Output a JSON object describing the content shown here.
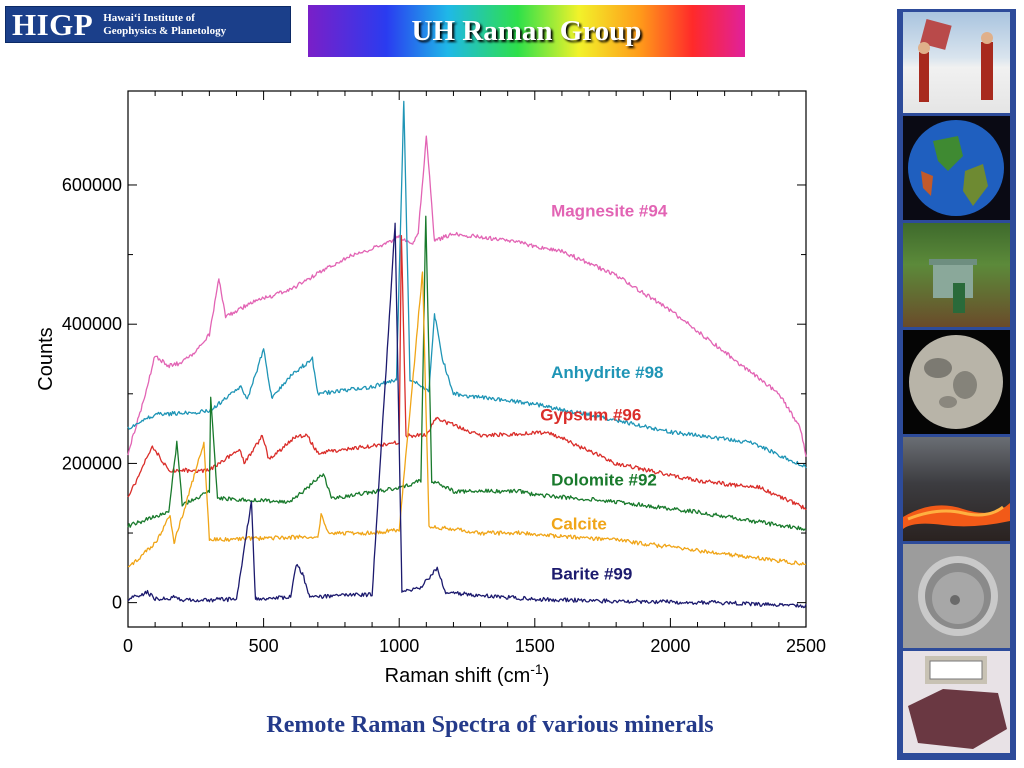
{
  "header": {
    "logo_abbr": "HIGP",
    "logo_full": "Hawaiʻi Institute of\nGeophysics & Planetology",
    "banner_title": "UH Raman Group"
  },
  "caption": "Remote Raman Spectra of various minerals",
  "side_photos": [
    "field-work-photo",
    "globe-photo",
    "forest-instrument-photo",
    "moon-photo",
    "lava-photo",
    "crater-photo",
    "mineral-sample-photo"
  ],
  "chart_data": {
    "type": "line",
    "xlabel": "Raman shift (cm",
    "xlabel_sup": "-1",
    "xlabel_end": ")",
    "ylabel": "Counts",
    "xlim": [
      0,
      2500
    ],
    "ylim": [
      -35000,
      735000
    ],
    "xticks": [
      0,
      500,
      1000,
      1500,
      2000,
      2500
    ],
    "yticks": [
      0,
      200000,
      400000,
      600000
    ],
    "grid": false,
    "series": [
      {
        "name": "Magnesite #94",
        "color": "#e264b4",
        "label_x": 1560,
        "label_y": 555000,
        "points": [
          [
            0,
            215000
          ],
          [
            50,
            280000
          ],
          [
            100,
            355000
          ],
          [
            150,
            340000
          ],
          [
            200,
            345000
          ],
          [
            250,
            360000
          ],
          [
            300,
            385000
          ],
          [
            335,
            465000
          ],
          [
            360,
            410000
          ],
          [
            450,
            430000
          ],
          [
            600,
            450000
          ],
          [
            800,
            495000
          ],
          [
            950,
            515000
          ],
          [
            1000,
            525000
          ],
          [
            1050,
            515000
          ],
          [
            1070,
            530000
          ],
          [
            1100,
            670000
          ],
          [
            1130,
            520000
          ],
          [
            1200,
            530000
          ],
          [
            1400,
            520000
          ],
          [
            1600,
            505000
          ],
          [
            1800,
            470000
          ],
          [
            2000,
            420000
          ],
          [
            2200,
            360000
          ],
          [
            2400,
            300000
          ],
          [
            2480,
            250000
          ],
          [
            2500,
            210000
          ]
        ],
        "peaks": [
          [
            335,
            0.9
          ],
          [
            1100,
            0.9
          ]
        ]
      },
      {
        "name": "Anhydrite #98",
        "color": "#1f95b6",
        "label_x": 1560,
        "label_y": 323000,
        "points": [
          [
            0,
            250000
          ],
          [
            100,
            270000
          ],
          [
            300,
            275000
          ],
          [
            415,
            310000
          ],
          [
            440,
            290000
          ],
          [
            500,
            365000
          ],
          [
            530,
            295000
          ],
          [
            610,
            330000
          ],
          [
            680,
            350000
          ],
          [
            700,
            300000
          ],
          [
            900,
            310000
          ],
          [
            990,
            320000
          ],
          [
            1017,
            720000
          ],
          [
            1040,
            320000
          ],
          [
            1110,
            305000
          ],
          [
            1130,
            415000
          ],
          [
            1160,
            350000
          ],
          [
            1200,
            300000
          ],
          [
            1500,
            285000
          ],
          [
            1700,
            270000
          ],
          [
            2000,
            245000
          ],
          [
            2300,
            230000
          ],
          [
            2500,
            195000
          ]
        ],
        "peaks": []
      },
      {
        "name": "Gypsum #96",
        "color": "#da2e2a",
        "label_x": 1520,
        "label_y": 262000,
        "points": [
          [
            0,
            150000
          ],
          [
            90,
            225000
          ],
          [
            150,
            190000
          ],
          [
            300,
            190000
          ],
          [
            410,
            220000
          ],
          [
            430,
            200000
          ],
          [
            495,
            240000
          ],
          [
            520,
            205000
          ],
          [
            620,
            240000
          ],
          [
            660,
            240000
          ],
          [
            700,
            215000
          ],
          [
            900,
            225000
          ],
          [
            1000,
            230000
          ],
          [
            1008,
            530000
          ],
          [
            1025,
            240000
          ],
          [
            1100,
            240000
          ],
          [
            1135,
            265000
          ],
          [
            1300,
            240000
          ],
          [
            1550,
            245000
          ],
          [
            1800,
            200000
          ],
          [
            2100,
            175000
          ],
          [
            2330,
            165000
          ],
          [
            2500,
            135000
          ]
        ],
        "peaks": []
      },
      {
        "name": "Dolomite #92",
        "color": "#197a2c",
        "label_x": 1560,
        "label_y": 168000,
        "points": [
          [
            0,
            110000
          ],
          [
            150,
            130000
          ],
          [
            180,
            230000
          ],
          [
            200,
            140000
          ],
          [
            300,
            160000
          ],
          [
            305,
            295000
          ],
          [
            330,
            150000
          ],
          [
            600,
            145000
          ],
          [
            720,
            185000
          ],
          [
            750,
            150000
          ],
          [
            1000,
            165000
          ],
          [
            1080,
            175000
          ],
          [
            1098,
            555000
          ],
          [
            1120,
            175000
          ],
          [
            1200,
            160000
          ],
          [
            1440,
            160000
          ],
          [
            1500,
            155000
          ],
          [
            1800,
            145000
          ],
          [
            2100,
            130000
          ],
          [
            2500,
            105000
          ]
        ],
        "peaks": []
      },
      {
        "name": "Calcite",
        "color": "#f0a518",
        "label_x": 1560,
        "label_y": 105000,
        "points": [
          [
            0,
            50000
          ],
          [
            100,
            85000
          ],
          [
            155,
            125000
          ],
          [
            170,
            85000
          ],
          [
            280,
            230000
          ],
          [
            300,
            90000
          ],
          [
            700,
            95000
          ],
          [
            712,
            125000
          ],
          [
            740,
            100000
          ],
          [
            900,
            100000
          ],
          [
            1000,
            105000
          ],
          [
            1086,
            475000
          ],
          [
            1110,
            110000
          ],
          [
            1300,
            100000
          ],
          [
            1440,
            100000
          ],
          [
            1600,
            95000
          ],
          [
            1800,
            90000
          ],
          [
            2100,
            75000
          ],
          [
            2500,
            55000
          ]
        ],
        "peaks": []
      },
      {
        "name": "Barite #99",
        "color": "#1c1a6e",
        "label_x": 1560,
        "label_y": 33000,
        "points": [
          [
            0,
            5000
          ],
          [
            70,
            15000
          ],
          [
            100,
            5000
          ],
          [
            180,
            8000
          ],
          [
            200,
            3000
          ],
          [
            400,
            5000
          ],
          [
            455,
            145000
          ],
          [
            470,
            5000
          ],
          [
            600,
            8000
          ],
          [
            620,
            55000
          ],
          [
            645,
            40000
          ],
          [
            670,
            8000
          ],
          [
            900,
            12000
          ],
          [
            985,
            545000
          ],
          [
            1010,
            15000
          ],
          [
            1080,
            22000
          ],
          [
            1140,
            50000
          ],
          [
            1170,
            15000
          ],
          [
            1300,
            10000
          ],
          [
            1500,
            5000
          ],
          [
            1800,
            2000
          ],
          [
            2200,
            0
          ],
          [
            2500,
            -5000
          ]
        ],
        "peaks": []
      }
    ]
  }
}
